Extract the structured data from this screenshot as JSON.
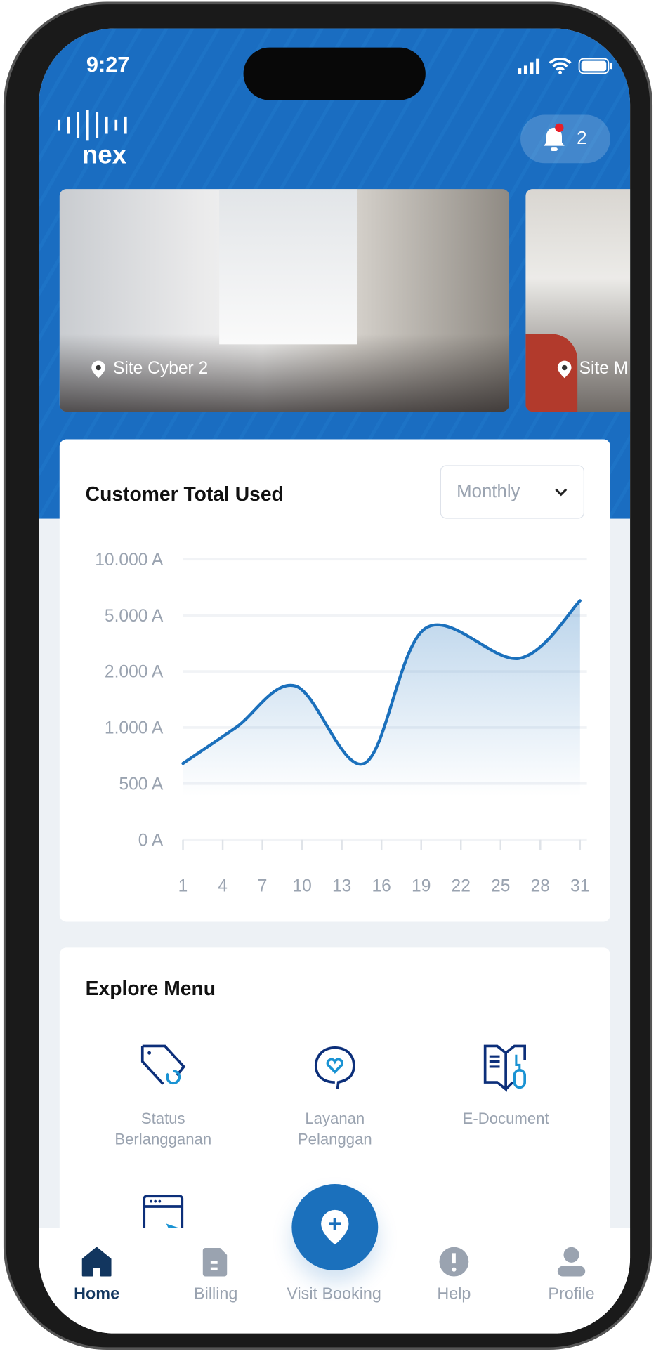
{
  "status_bar": {
    "time": "9:27"
  },
  "header": {
    "logo_text": "nex",
    "notification_count": "2"
  },
  "sites": [
    {
      "label": "Site Cyber 2"
    },
    {
      "label": "Site M"
    }
  ],
  "usage_card": {
    "title": "Customer Total Used",
    "period_select": "Monthly"
  },
  "chart_data": {
    "type": "area",
    "title": "Customer Total Used",
    "x_ticks": [
      "1",
      "4",
      "7",
      "10",
      "13",
      "16",
      "19",
      "22",
      "25",
      "28",
      "31"
    ],
    "y_ticks": [
      "0 A",
      "500 A",
      "1.000 A",
      "2.000 A",
      "5.000 A",
      "10.000 A"
    ],
    "y_tick_values": [
      0,
      500,
      1000,
      2000,
      5000,
      10000
    ],
    "xlim": [
      1,
      31
    ],
    "ylim": [
      0,
      10000
    ],
    "grid": true,
    "color": "#1b70bc",
    "series": [
      {
        "x": [
          1,
          5,
          9.5,
          14.7,
          19.3,
          26.4,
          31
        ],
        "y": [
          680,
          1000,
          1740,
          680,
          4300,
          2700,
          6300
        ]
      }
    ]
  },
  "explore": {
    "title": "Explore Menu",
    "items": [
      {
        "label_1": "Status",
        "label_2": "Berlangganan",
        "icon": "price-tag-icon"
      },
      {
        "label_1": "Layanan",
        "label_2": "Pelanggan",
        "icon": "chat-heart-icon"
      },
      {
        "label_1": "E-Document",
        "label_2": "",
        "icon": "book-mouse-icon"
      },
      {
        "label_1": "",
        "label_2": "",
        "icon": "browser-cursor-icon"
      }
    ]
  },
  "nav": {
    "items": [
      {
        "label": "Home",
        "active": true
      },
      {
        "label": "Billing"
      },
      {
        "label": "Visit Booking"
      },
      {
        "label": "Help"
      },
      {
        "label": "Profile"
      }
    ]
  },
  "colors": {
    "primary": "#1b70bc",
    "nav_active": "#12365f",
    "muted": "#9aa3b0",
    "icon_dark": "#0c2f7a",
    "icon_light": "#1a93d3"
  }
}
